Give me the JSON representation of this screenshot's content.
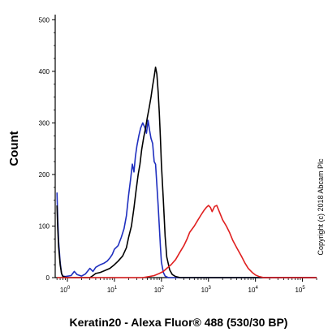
{
  "chart_data": {
    "type": "line",
    "xlabel": "Keratin20 - Alexa Fluor® 488 (530/30 BP)",
    "ylabel": "Count",
    "x_scale": "log",
    "xlim": [
      0.55,
      200000
    ],
    "ylim": [
      0,
      510
    ],
    "y_ticks": [
      {
        "value": 0,
        "label": "0"
      },
      {
        "value": 100,
        "label": "100"
      },
      {
        "value": 200,
        "label": "200"
      },
      {
        "value": 300,
        "label": "300"
      },
      {
        "value": 400,
        "label": "400"
      },
      {
        "value": 500,
        "label": "500"
      }
    ],
    "x_ticks": [
      {
        "value": 1,
        "base": "10",
        "exp": "0"
      },
      {
        "value": 10,
        "base": "10",
        "exp": "1"
      },
      {
        "value": 100,
        "base": "10",
        "exp": "2"
      },
      {
        "value": 1000,
        "base": "10",
        "exp": "3"
      },
      {
        "value": 10000,
        "base": "10",
        "exp": "4"
      },
      {
        "value": 100000,
        "base": "10",
        "exp": "5"
      }
    ],
    "annotation": "Copyright (c) 2018 Abcam Plc",
    "series": [
      {
        "color": "#1f2fbf",
        "points": [
          [
            0.6,
            165
          ],
          [
            0.62,
            120
          ],
          [
            0.65,
            70
          ],
          [
            0.7,
            30
          ],
          [
            0.75,
            8
          ],
          [
            0.8,
            3
          ],
          [
            0.9,
            2
          ],
          [
            1.2,
            4
          ],
          [
            1.4,
            12
          ],
          [
            1.6,
            6
          ],
          [
            2.0,
            3
          ],
          [
            2.4,
            7
          ],
          [
            3.0,
            18
          ],
          [
            3.5,
            12
          ],
          [
            4.0,
            20
          ],
          [
            5.0,
            25
          ],
          [
            6.0,
            28
          ],
          [
            7.0,
            32
          ],
          [
            8.0,
            38
          ],
          [
            9.0,
            45
          ],
          [
            10,
            55
          ],
          [
            12,
            62
          ],
          [
            14,
            78
          ],
          [
            16,
            95
          ],
          [
            18,
            120
          ],
          [
            20,
            160
          ],
          [
            22,
            190
          ],
          [
            24,
            220
          ],
          [
            26,
            205
          ],
          [
            28,
            235
          ],
          [
            30,
            255
          ],
          [
            33,
            275
          ],
          [
            36,
            290
          ],
          [
            40,
            300
          ],
          [
            44,
            292
          ],
          [
            48,
            280
          ],
          [
            52,
            305
          ],
          [
            56,
            285
          ],
          [
            60,
            270
          ],
          [
            65,
            260
          ],
          [
            70,
            225
          ],
          [
            75,
            220
          ],
          [
            80,
            180
          ],
          [
            85,
            140
          ],
          [
            90,
            100
          ],
          [
            95,
            60
          ],
          [
            100,
            30
          ],
          [
            110,
            10
          ],
          [
            120,
            3
          ],
          [
            140,
            0
          ],
          [
            200000,
            0
          ]
        ]
      },
      {
        "color": "#000000",
        "points": [
          [
            0.6,
            140
          ],
          [
            0.62,
            100
          ],
          [
            0.65,
            60
          ],
          [
            0.7,
            25
          ],
          [
            0.75,
            8
          ],
          [
            0.8,
            2
          ],
          [
            1.0,
            0
          ],
          [
            2,
            0
          ],
          [
            3,
            0
          ],
          [
            3.5,
            4
          ],
          [
            4,
            8
          ],
          [
            5,
            10
          ],
          [
            6,
            13
          ],
          [
            8,
            18
          ],
          [
            10,
            25
          ],
          [
            12,
            32
          ],
          [
            15,
            42
          ],
          [
            18,
            58
          ],
          [
            20,
            78
          ],
          [
            23,
            100
          ],
          [
            26,
            135
          ],
          [
            29,
            170
          ],
          [
            32,
            200
          ],
          [
            35,
            220
          ],
          [
            38,
            248
          ],
          [
            42,
            272
          ],
          [
            46,
            290
          ],
          [
            50,
            310
          ],
          [
            55,
            330
          ],
          [
            60,
            350
          ],
          [
            65,
            372
          ],
          [
            70,
            390
          ],
          [
            75,
            408
          ],
          [
            80,
            395
          ],
          [
            85,
            360
          ],
          [
            90,
            320
          ],
          [
            95,
            270
          ],
          [
            100,
            220
          ],
          [
            110,
            150
          ],
          [
            120,
            80
          ],
          [
            130,
            40
          ],
          [
            150,
            15
          ],
          [
            170,
            6
          ],
          [
            200,
            2
          ],
          [
            250,
            0
          ],
          [
            200000,
            0
          ]
        ]
      },
      {
        "color": "#e02020",
        "points": [
          [
            0.6,
            0
          ],
          [
            40,
            0
          ],
          [
            55,
            2
          ],
          [
            70,
            4
          ],
          [
            90,
            8
          ],
          [
            110,
            12
          ],
          [
            130,
            18
          ],
          [
            160,
            25
          ],
          [
            200,
            35
          ],
          [
            250,
            50
          ],
          [
            300,
            62
          ],
          [
            350,
            75
          ],
          [
            400,
            88
          ],
          [
            500,
            100
          ],
          [
            600,
            112
          ],
          [
            700,
            122
          ],
          [
            800,
            130
          ],
          [
            900,
            136
          ],
          [
            1000,
            140
          ],
          [
            1100,
            136
          ],
          [
            1200,
            128
          ],
          [
            1350,
            138
          ],
          [
            1500,
            140
          ],
          [
            1700,
            128
          ],
          [
            2000,
            112
          ],
          [
            2400,
            100
          ],
          [
            2800,
            88
          ],
          [
            3300,
            72
          ],
          [
            4000,
            58
          ],
          [
            5000,
            42
          ],
          [
            6000,
            28
          ],
          [
            7000,
            18
          ],
          [
            8500,
            10
          ],
          [
            10000,
            5
          ],
          [
            12000,
            2
          ],
          [
            15000,
            0
          ],
          [
            200000,
            0
          ]
        ]
      }
    ]
  }
}
